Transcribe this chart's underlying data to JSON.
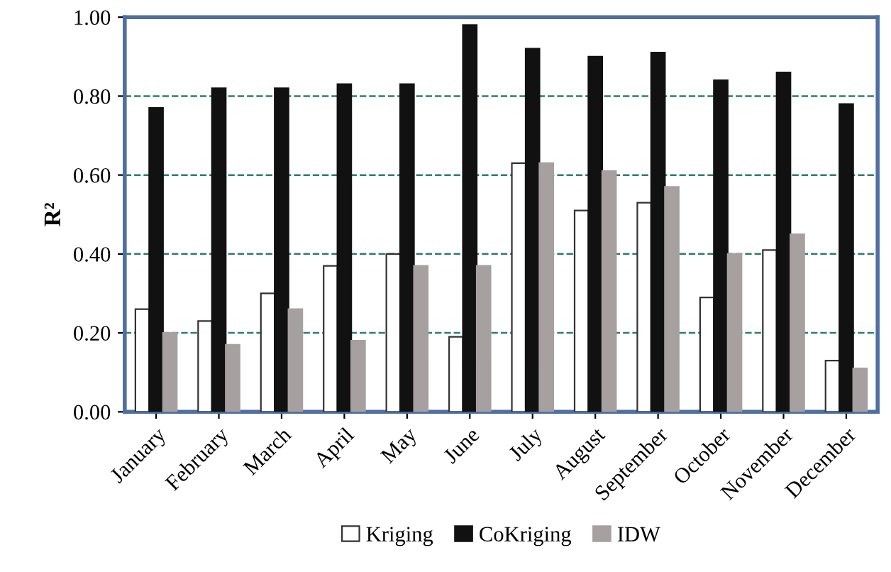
{
  "chart_data": {
    "type": "bar",
    "ylabel": "R²",
    "categories": [
      "January",
      "February",
      "March",
      "April",
      "May",
      "June",
      "July",
      "August",
      "September",
      "October",
      "November",
      "December"
    ],
    "series": [
      {
        "name": "Kriging",
        "color": "#ffffff",
        "values": [
          0.26,
          0.23,
          0.3,
          0.37,
          0.4,
          0.19,
          0.63,
          0.51,
          0.53,
          0.29,
          0.41,
          0.13
        ]
      },
      {
        "name": "CoKriging",
        "color": "#111111",
        "values": [
          0.77,
          0.82,
          0.82,
          0.83,
          0.83,
          0.98,
          0.92,
          0.9,
          0.91,
          0.84,
          0.86,
          0.78
        ]
      },
      {
        "name": "IDW",
        "color": "#a6a0a0",
        "values": [
          0.2,
          0.17,
          0.26,
          0.18,
          0.37,
          0.37,
          0.63,
          0.61,
          0.57,
          0.4,
          0.45,
          0.11
        ]
      }
    ],
    "ylim": [
      0,
      1
    ],
    "yticks": [
      {
        "value": 0,
        "label": "0.00"
      },
      {
        "value": 0.2,
        "label": "0.20"
      },
      {
        "value": 0.4,
        "label": "0.40"
      },
      {
        "value": 0.6,
        "label": "0.60"
      },
      {
        "value": 0.8,
        "label": "0.80"
      },
      {
        "value": 1,
        "label": "1.00"
      }
    ],
    "grid": "y",
    "legend": "bottom"
  }
}
